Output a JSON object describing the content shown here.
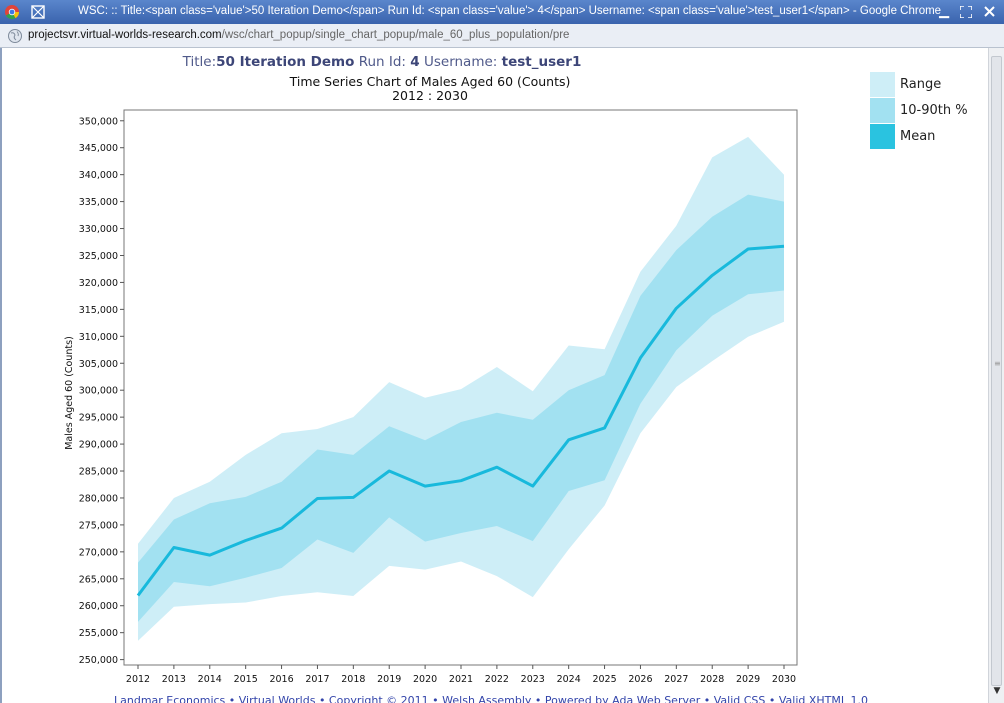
{
  "window": {
    "title": "WSC:  :: Title:<span class='value'>50 Iteration Demo</span> Run Id: <span class='value'> 4</span> Username: <span class='value'>test_user1</span> - Google Chrome",
    "url_host": "projectsvr.virtual-worlds-research.com",
    "url_path": "/wsc/chart_popup/single_chart_popup/male_60_plus_population/pre"
  },
  "header": {
    "title_label": "Title:",
    "title_value": "50 Iteration Demo",
    "run_label": "Run Id:",
    "run_value": "4",
    "user_label": "Username:",
    "user_value": "test_user1"
  },
  "footer": {
    "text": "Landmar Economics • Virtual Worlds • Copyright © 2011 • Welsh Assembly • Powered by Ada Web Server • Valid CSS • Valid XHTML 1.0"
  },
  "legend": [
    {
      "label": "Range",
      "color": "#ceeef7"
    },
    {
      "label": "10-90th %",
      "color": "#a2e1f1"
    },
    {
      "label": "Mean",
      "color": "#2ac3e0"
    }
  ],
  "chart_data": {
    "type": "area",
    "title": "Time Series Chart of Males Aged 60 (Counts)",
    "subtitle": "2012 :  2030",
    "xlabel": "",
    "ylabel": "Males Aged 60 (Counts)",
    "ylim": [
      249000,
      352000
    ],
    "yticks": [
      250000,
      255000,
      260000,
      265000,
      270000,
      275000,
      280000,
      285000,
      290000,
      295000,
      300000,
      305000,
      310000,
      315000,
      320000,
      325000,
      330000,
      335000,
      340000,
      345000,
      350000
    ],
    "x": [
      2012,
      2013,
      2014,
      2015,
      2016,
      2017,
      2018,
      2019,
      2020,
      2021,
      2022,
      2023,
      2024,
      2025,
      2026,
      2027,
      2028,
      2029,
      2030
    ],
    "series": [
      {
        "name": "Range max",
        "values": [
          271500,
          280000,
          283000,
          288000,
          292000,
          292800,
          295000,
          301500,
          298600,
          300200,
          304300,
          299800,
          308300,
          307600,
          322000,
          330500,
          343200,
          347000,
          340000
        ]
      },
      {
        "name": "10-90th upper",
        "values": [
          268000,
          276000,
          279000,
          280200,
          283000,
          289000,
          288000,
          293300,
          290700,
          294100,
          295800,
          294500,
          300000,
          302800,
          317500,
          326000,
          332200,
          336300,
          335000
        ]
      },
      {
        "name": "Mean",
        "values": [
          261900,
          270800,
          269400,
          272100,
          274400,
          279900,
          280100,
          285000,
          282200,
          283200,
          285700,
          282200,
          290800,
          293000,
          306000,
          315200,
          321300,
          326200,
          326700
        ]
      },
      {
        "name": "10-90th lower",
        "values": [
          257000,
          264400,
          263600,
          265200,
          267000,
          272300,
          269800,
          276400,
          271900,
          273500,
          274800,
          272000,
          281300,
          283300,
          297500,
          307400,
          313800,
          317800,
          318500
        ]
      },
      {
        "name": "Range min",
        "values": [
          253500,
          259800,
          260300,
          260600,
          261800,
          262500,
          261800,
          267400,
          266700,
          268200,
          265500,
          261600,
          270500,
          278600,
          292000,
          300600,
          305400,
          309900,
          312700
        ]
      }
    ],
    "grid": false
  }
}
